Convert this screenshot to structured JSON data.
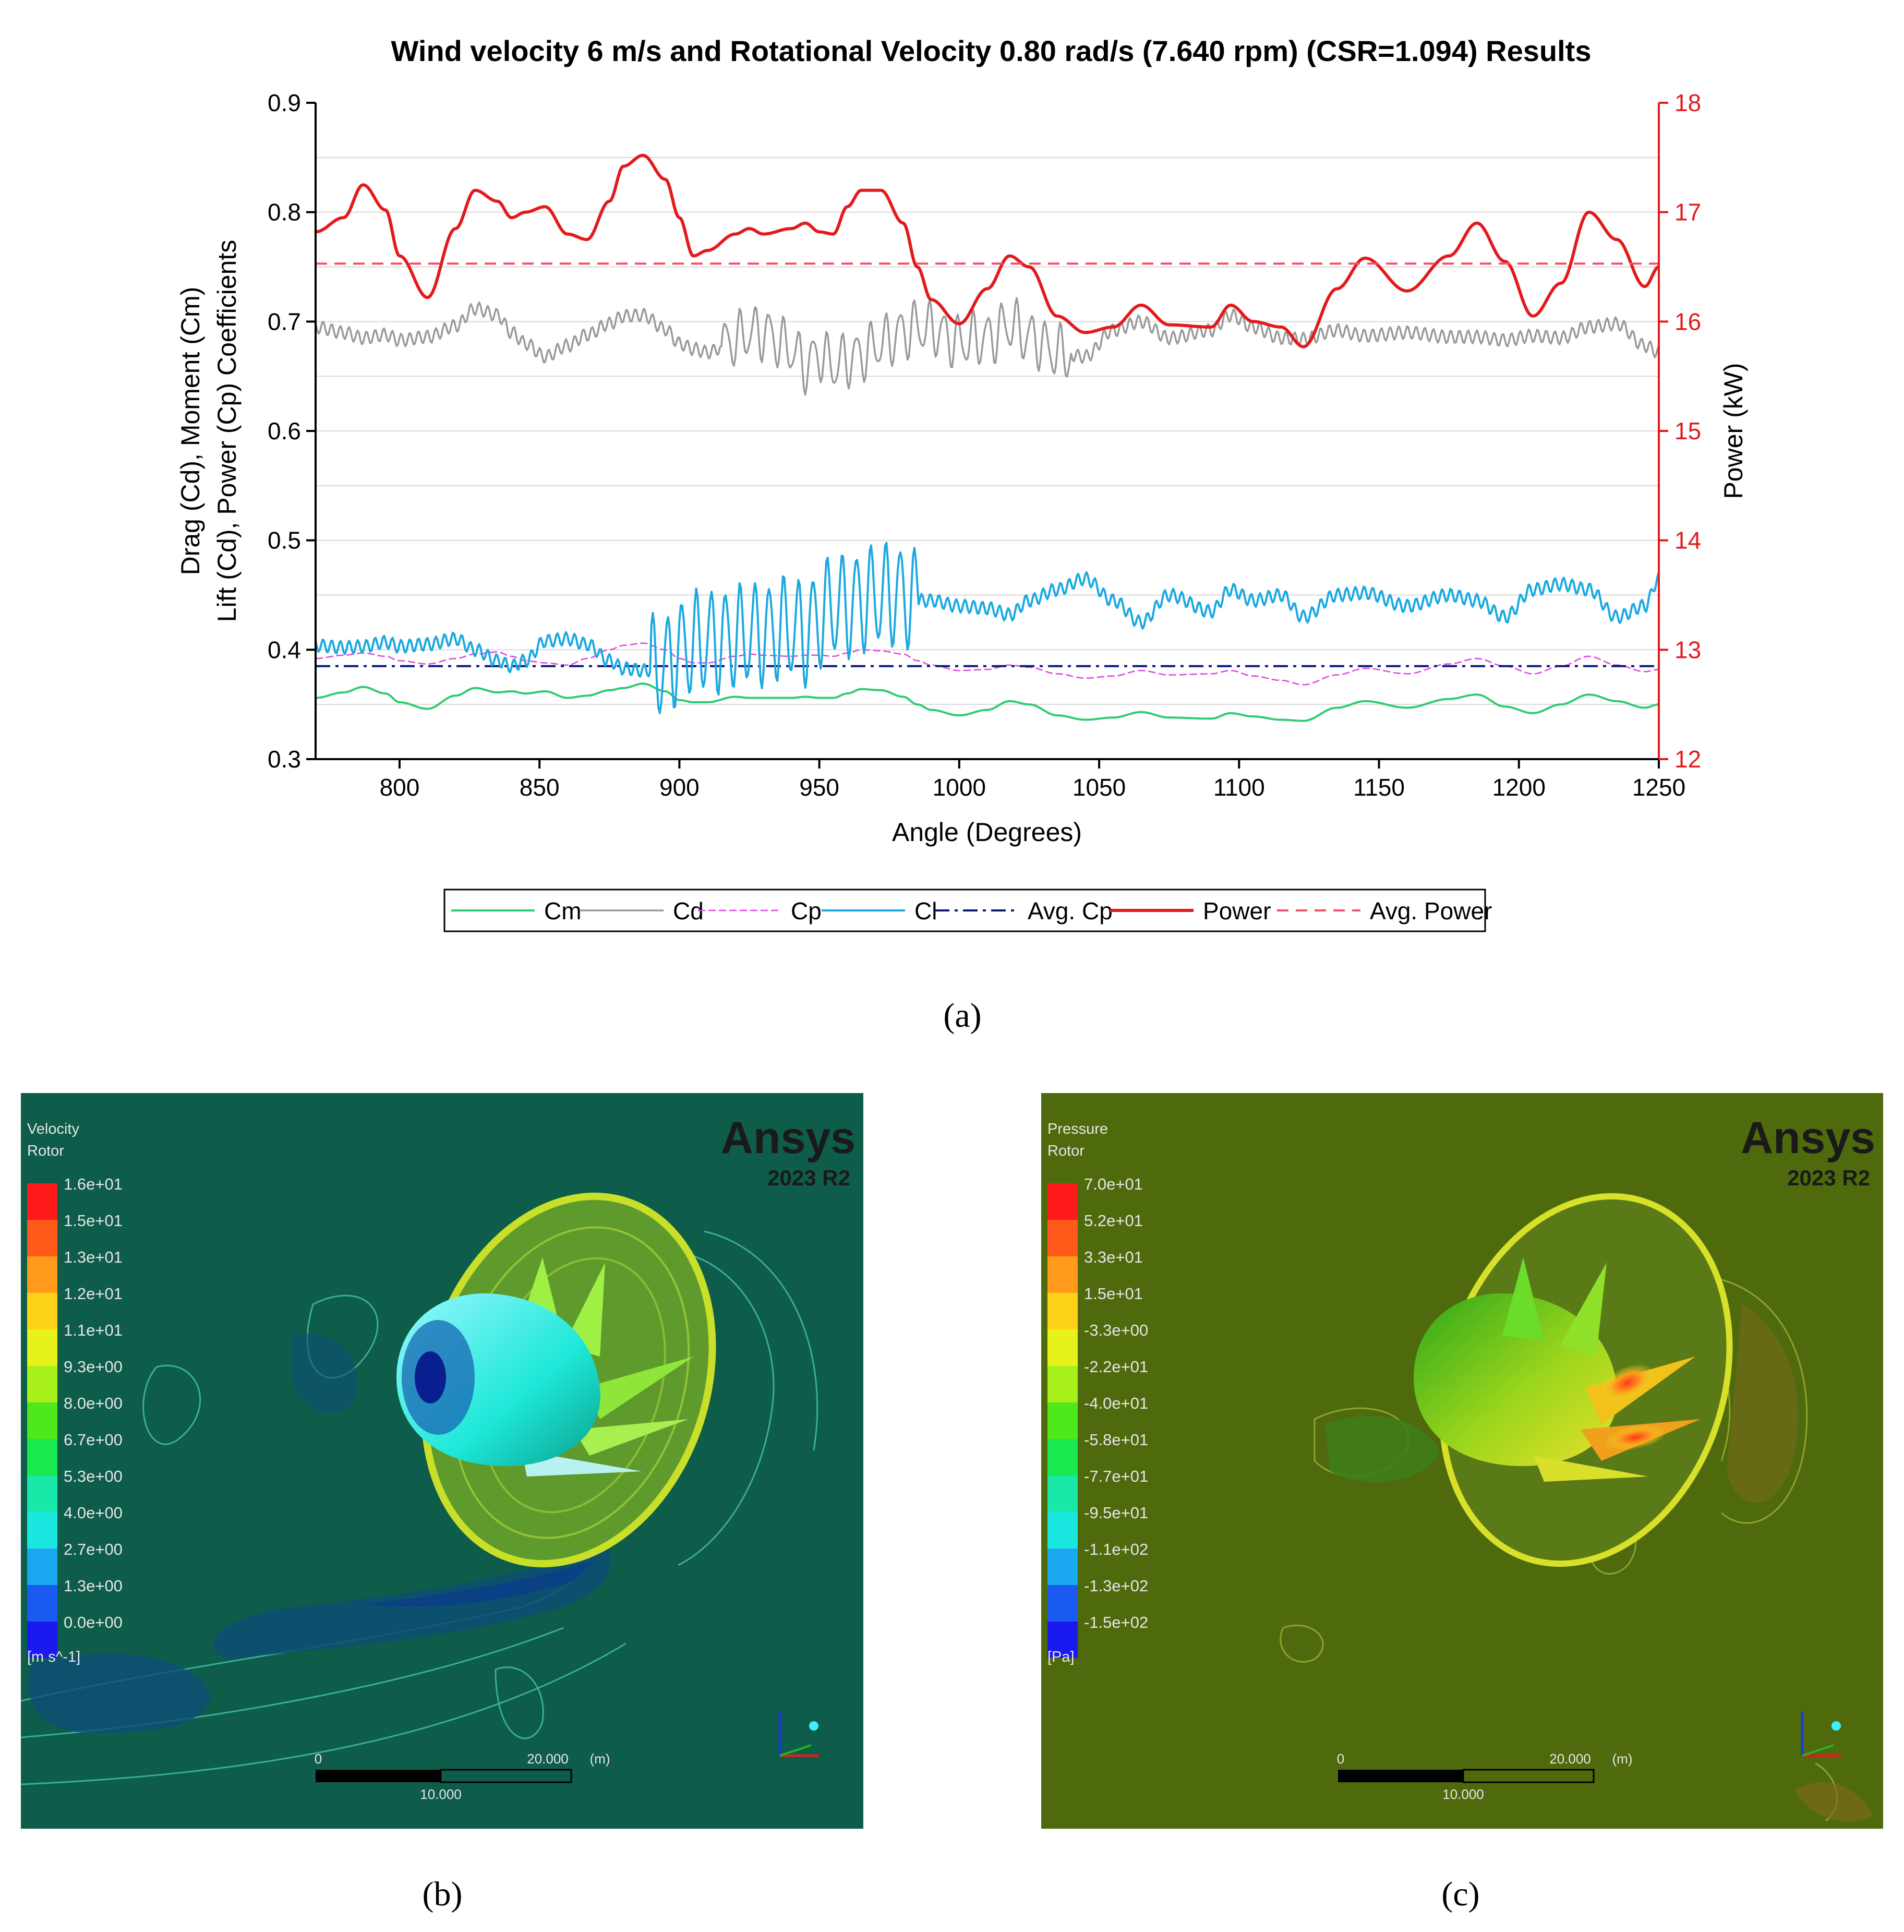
{
  "figure": {
    "panel_a_label": "(a)",
    "panel_b_label": "(b)",
    "panel_c_label": "(c)"
  },
  "chart_data": {
    "type": "line",
    "title": "Wind velocity 6 m/s and  Rotational Velocity 0.80 rad/s (7.640 rpm) (CSR=1.094) Results",
    "xlabel": "Angle (Degrees)",
    "ylabel_left_line1": "Drag (Cd), Moment (Cm)",
    "ylabel_left_line2": "Lift (Cd), Power (Cp) Coefficients",
    "ylabel_right": "Power (kW)",
    "xlim": [
      770,
      1250
    ],
    "ylim_left": [
      0.3,
      0.9
    ],
    "ylim_right": [
      12,
      18
    ],
    "x_ticks": [
      800,
      850,
      900,
      950,
      1000,
      1050,
      1100,
      1150,
      1200,
      1250
    ],
    "y_ticks_left": [
      0.3,
      0.4,
      0.5,
      0.6,
      0.7,
      0.8,
      0.9
    ],
    "y_ticks_right": [
      12,
      13,
      14,
      15,
      16,
      17,
      18
    ],
    "grid": true,
    "legend_position": "bottom",
    "colors": {
      "Cm": "#2ecc71",
      "Cd": "#999999",
      "Cp": "#e040e0",
      "Cl": "#1ba9e0",
      "AvgCp": "#0b1a7a",
      "Power": "#e31a1c",
      "AvgPower": "#f2506a",
      "right_axis": "#e31a1c"
    },
    "x": [
      770,
      780,
      787,
      795,
      800,
      810,
      820,
      827,
      835,
      840,
      845,
      852,
      860,
      867,
      875,
      880,
      887,
      895,
      900,
      905,
      910,
      920,
      925,
      930,
      940,
      945,
      950,
      955,
      960,
      965,
      972,
      980,
      985,
      990,
      1000,
      1010,
      1018,
      1025,
      1035,
      1045,
      1055,
      1065,
      1075,
      1090,
      1097,
      1105,
      1115,
      1123,
      1135,
      1145,
      1160,
      1175,
      1185,
      1195,
      1205,
      1215,
      1225,
      1235,
      1245,
      1250
    ],
    "series": [
      {
        "name": "Cm",
        "axis": "left",
        "values": [
          0.356,
          0.361,
          0.366,
          0.36,
          0.352,
          0.346,
          0.358,
          0.365,
          0.361,
          0.362,
          0.36,
          0.362,
          0.356,
          0.358,
          0.363,
          0.365,
          0.369,
          0.362,
          0.354,
          0.352,
          0.352,
          0.357,
          0.356,
          0.356,
          0.356,
          0.357,
          0.356,
          0.356,
          0.36,
          0.364,
          0.363,
          0.357,
          0.35,
          0.345,
          0.34,
          0.345,
          0.353,
          0.35,
          0.34,
          0.336,
          0.338,
          0.343,
          0.338,
          0.337,
          0.342,
          0.339,
          0.336,
          0.335,
          0.347,
          0.353,
          0.347,
          0.355,
          0.359,
          0.348,
          0.342,
          0.35,
          0.359,
          0.353,
          0.347,
          0.35
        ]
      },
      {
        "name": "Cd",
        "axis": "left",
        "values": [
          0.695,
          0.69,
          0.685,
          0.688,
          0.683,
          0.686,
          0.696,
          0.712,
          0.706,
          0.69,
          0.68,
          0.668,
          0.678,
          0.688,
          0.698,
          0.705,
          0.706,
          0.693,
          0.68,
          0.675,
          0.672,
          0.683,
          0.69,
          0.69,
          0.675,
          0.66,
          0.67,
          0.66,
          0.665,
          0.67,
          0.68,
          0.69,
          0.695,
          0.693,
          0.682,
          0.685,
          0.697,
          0.686,
          0.672,
          0.668,
          0.692,
          0.7,
          0.685,
          0.692,
          0.706,
          0.695,
          0.685,
          0.684,
          0.692,
          0.687,
          0.69,
          0.686,
          0.686,
          0.683,
          0.687,
          0.685,
          0.695,
          0.698,
          0.678,
          0.672
        ]
      },
      {
        "name": "Cp",
        "axis": "left",
        "values": [
          0.392,
          0.395,
          0.397,
          0.394,
          0.39,
          0.387,
          0.392,
          0.396,
          0.398,
          0.394,
          0.39,
          0.388,
          0.386,
          0.392,
          0.4,
          0.404,
          0.406,
          0.4,
          0.392,
          0.388,
          0.388,
          0.394,
          0.396,
          0.395,
          0.394,
          0.395,
          0.395,
          0.394,
          0.397,
          0.4,
          0.399,
          0.396,
          0.39,
          0.386,
          0.381,
          0.382,
          0.386,
          0.384,
          0.378,
          0.374,
          0.376,
          0.381,
          0.377,
          0.378,
          0.381,
          0.376,
          0.372,
          0.368,
          0.377,
          0.383,
          0.378,
          0.387,
          0.392,
          0.385,
          0.378,
          0.385,
          0.394,
          0.386,
          0.38,
          0.382
        ]
      },
      {
        "name": "Cl",
        "axis": "left",
        "values": [
          0.404,
          0.402,
          0.403,
          0.407,
          0.403,
          0.405,
          0.41,
          0.4,
          0.39,
          0.385,
          0.39,
          0.408,
          0.41,
          0.405,
          0.39,
          0.383,
          0.381,
          0.385,
          0.4,
          0.405,
          0.408,
          0.41,
          0.415,
          0.415,
          0.42,
          0.415,
          0.43,
          0.44,
          0.44,
          0.445,
          0.45,
          0.45,
          0.445,
          0.445,
          0.44,
          0.438,
          0.432,
          0.445,
          0.455,
          0.465,
          0.445,
          0.425,
          0.45,
          0.435,
          0.455,
          0.445,
          0.45,
          0.43,
          0.45,
          0.452,
          0.44,
          0.45,
          0.445,
          0.43,
          0.455,
          0.46,
          0.455,
          0.43,
          0.44,
          0.465
        ]
      },
      {
        "name": "Avg. Cp",
        "axis": "left",
        "constant": 0.385
      },
      {
        "name": "Power",
        "axis": "right",
        "values": [
          16.82,
          16.95,
          17.25,
          17.02,
          16.6,
          16.22,
          16.85,
          17.2,
          17.1,
          16.95,
          17.0,
          17.05,
          16.8,
          16.75,
          17.1,
          17.42,
          17.52,
          17.3,
          16.95,
          16.6,
          16.65,
          16.8,
          16.85,
          16.8,
          16.85,
          16.9,
          16.82,
          16.8,
          17.05,
          17.2,
          17.2,
          16.9,
          16.5,
          16.2,
          15.98,
          16.3,
          16.6,
          16.5,
          16.05,
          15.9,
          15.95,
          16.15,
          15.97,
          15.95,
          16.15,
          16.0,
          15.95,
          15.77,
          16.3,
          16.58,
          16.28,
          16.6,
          16.9,
          16.55,
          16.05,
          16.35,
          17.0,
          16.75,
          16.32,
          16.5
        ]
      },
      {
        "name": "Avg. Power",
        "axis": "right",
        "constant": 16.53
      }
    ],
    "oscillation_zones": [
      {
        "series": "Cl",
        "from": 890,
        "to": 945,
        "amplitude": 0.045
      },
      {
        "series": "Cl",
        "from": 945,
        "to": 985,
        "amplitude": 0.045
      },
      {
        "series": "Cd",
        "from": 915,
        "to": 1040,
        "amplitude": 0.022
      }
    ]
  },
  "panel_b": {
    "legend_title_line1": "Velocity",
    "legend_title_line2": "Rotor",
    "legend_values": [
      "1.6e+01",
      "1.5e+01",
      "1.3e+01",
      "1.2e+01",
      "1.1e+01",
      "9.3e+00",
      "8.0e+00",
      "6.7e+00",
      "5.3e+00",
      "4.0e+00",
      "2.7e+00",
      "1.3e+00",
      "0.0e+00"
    ],
    "unit": "[m s^-1]",
    "brand": "Ansys",
    "version": "2023 R2",
    "scale_start": "0",
    "scale_mid": "10.000",
    "scale_end": "20.000",
    "scale_unit": "(m)",
    "background_color": "#0e5c4a"
  },
  "panel_c": {
    "legend_title_line1": "Pressure",
    "legend_title_line2": "Rotor",
    "legend_values": [
      "7.0e+01",
      "5.2e+01",
      "3.3e+01",
      "1.5e+01",
      "-3.3e+00",
      "-2.2e+01",
      "-4.0e+01",
      "-5.8e+01",
      "-7.7e+01",
      "-9.5e+01",
      "-1.1e+02",
      "-1.3e+02",
      "-1.5e+02"
    ],
    "unit": "[Pa]",
    "brand": "Ansys",
    "version": "2023 R2",
    "scale_start": "0",
    "scale_mid": "10.000",
    "scale_end": "20.000",
    "scale_unit": "(m)",
    "background_color": "#4f6a0d"
  }
}
